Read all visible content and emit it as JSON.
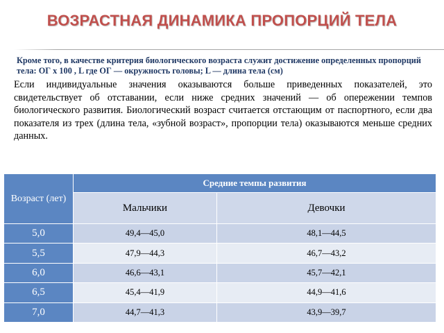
{
  "slide": {
    "title": "ВОЗРАСТНАЯ ДИНАМИКА ПРОПОРЦИЙ ТЕЛА",
    "subtitle": "Кроме того, в качестве критерия биологического возраста служит достижение определенных пропорций тела: ОГ х 100 , L где ОГ — окружность головы; L — длина тела (см)",
    "paragraph": "Если индивидуальные значения оказываются больше приведенных показателей, это свидетельствует об отставании, если ниже средних значений — об опережении темпов биологического развития. Биологический возраст считается отстающим от паспортного, если два показателя из трех (длина тела, «зубной возраст», пропорции тела) оказываются меньше средних данных."
  },
  "table": {
    "age_header": "Возраст (лет)",
    "group_header": "Средние темпы развития",
    "boys_header": "Мальчики",
    "girls_header": "Девочки",
    "rows": [
      {
        "age": "5,0",
        "boys": "49,4—45,0",
        "girls": "48,1—44,5"
      },
      {
        "age": "5,5",
        "boys": "47,9—44,3",
        "girls": "46,7—43,2"
      },
      {
        "age": "6,0",
        "boys": "46,6—43,1",
        "girls": "45,7—42,1"
      },
      {
        "age": "6,5",
        "boys": "45,4—41,9",
        "girls": "44,9—41,6"
      },
      {
        "age": "7,0",
        "boys": "44,7—41,3",
        "girls": "43,9—39,7"
      }
    ]
  },
  "colors": {
    "title": "#c0504d",
    "subtitle": "#1f3864",
    "header_fill": "#5b86c2",
    "subheader_fill": "#cfd8ea",
    "row_dark": "#c9d3e7",
    "row_light": "#e7ecf4"
  }
}
